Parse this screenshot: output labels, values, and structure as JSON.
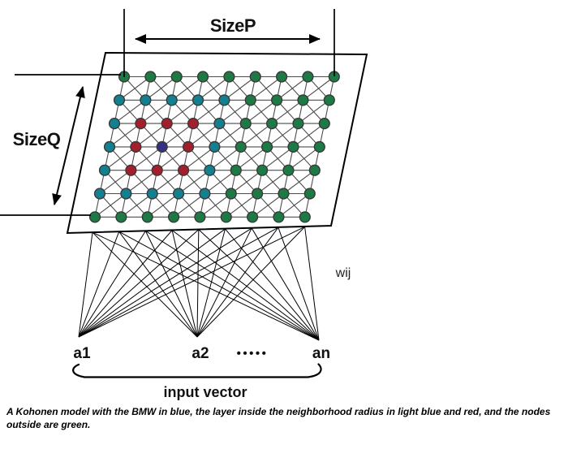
{
  "diagram": {
    "type": "kohonen-self-organizing-map",
    "plane": {
      "size_p_label": "SizeP",
      "size_q_label": "SizeQ"
    },
    "weights_label": "wij",
    "input_layer": {
      "node_labels": [
        "a1",
        "a2",
        "an"
      ],
      "ellipsis": "•••••",
      "label": "input vector"
    },
    "legend_colors": {
      "green": "#1e7a44",
      "light_blue": "#12808e",
      "red": "#a31f2b",
      "blue": "#32307f",
      "node_outline": "#383838",
      "grid_line": "#4d4d4d",
      "outline_black": "#000000"
    },
    "color_key": {
      "G": "green",
      "C": "light_blue",
      "R": "red",
      "B": "blue"
    },
    "grid": {
      "rows": 7,
      "cols": 9,
      "node_colors": [
        [
          "G",
          "G",
          "G",
          "G",
          "G",
          "G",
          "G",
          "G",
          "G"
        ],
        [
          "C",
          "C",
          "C",
          "C",
          "C",
          "G",
          "G",
          "G",
          "G"
        ],
        [
          "C",
          "R",
          "R",
          "R",
          "C",
          "G",
          "G",
          "G",
          "G"
        ],
        [
          "C",
          "R",
          "B",
          "R",
          "C",
          "G",
          "G",
          "G",
          "G"
        ],
        [
          "C",
          "R",
          "R",
          "R",
          "C",
          "G",
          "G",
          "G",
          "G"
        ],
        [
          "C",
          "C",
          "C",
          "C",
          "C",
          "G",
          "G",
          "G",
          "G"
        ],
        [
          "G",
          "G",
          "G",
          "G",
          "G",
          "G",
          "G",
          "G",
          "G"
        ]
      ]
    },
    "caption": "A Kohonen model with the BMW in blue, the layer inside the neighborhood radius in light blue and red, and the nodes outside are green."
  }
}
